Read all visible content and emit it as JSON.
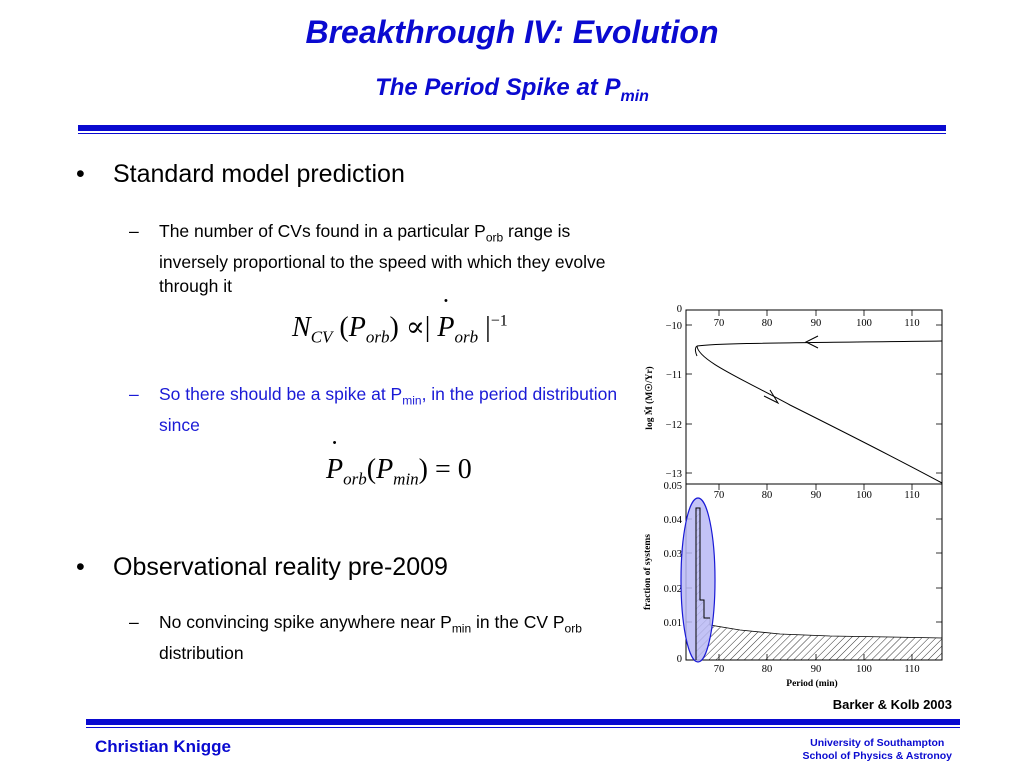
{
  "header": {
    "title": "Breakthrough IV: Evolution",
    "subtitle_main": "The Period Spike at P",
    "subtitle_sub": "min"
  },
  "bullets": [
    {
      "text": "Standard model prediction",
      "sub": {
        "mark": "–",
        "text_a": "The number of CVs found in a particular P",
        "text_a_sub": "orb",
        "text_b": " range is inversely proportional to the speed with which they evolve through it"
      }
    },
    {
      "text": "Observational reality pre-2009",
      "sub": {
        "mark": "–",
        "text_a": "No convincing spike anywhere near P",
        "text_a_sub": "min",
        "text_b": " in the CV P",
        "text_b_sub": "orb",
        "text_c": " distribution"
      }
    }
  ],
  "spike_point": {
    "mark": "–",
    "text_a": "So there should be a spike at P",
    "text_a_sub": "min",
    "text_b": ", in the period distribution since"
  },
  "equation1": {
    "N": "N",
    "N_sub": "CV",
    "lp": "(",
    "P": "P",
    "P_sub": "orb",
    "rp": ")",
    "prop": "∝",
    "bar": "|",
    "Pdot": "P",
    "Pdot_sub": "orb",
    "bar2": "|",
    "exp": "−1"
  },
  "equation2": {
    "Pdot": "P",
    "Pdot_sub": "orb",
    "lp": "(",
    "P": "P",
    "P_sub": "min",
    "rp": ")",
    "eq": "=",
    "zero": "0"
  },
  "figure": {
    "top_panel": {
      "ylabel": "log Ṁ (M☉/Yr)",
      "yticks": [
        "−10",
        "−11",
        "−12",
        "−13"
      ],
      "xticks": [
        "70",
        "80",
        "90",
        "100",
        "110"
      ],
      "y_top_label": "0"
    },
    "bottom_panel": {
      "ylabel": "fraction of systems",
      "yticks": [
        "0.05",
        "0.04",
        "0.03",
        "0.02",
        "0.01",
        "0"
      ],
      "xticks": [
        "70",
        "80",
        "90",
        "100",
        "110"
      ],
      "xlabel": "Period (min)"
    },
    "highlight_color": "#b9b9f5",
    "highlight_stroke": "#1a1ad6"
  },
  "caption": "Barker & Kolb 2003",
  "footer": {
    "author": "Christian Knigge",
    "univ_line1": "University of Southampton",
    "univ_line2": "School of Physics & Astronoy"
  },
  "colors": {
    "accent": "#0a0ad0",
    "text": "#000000"
  }
}
